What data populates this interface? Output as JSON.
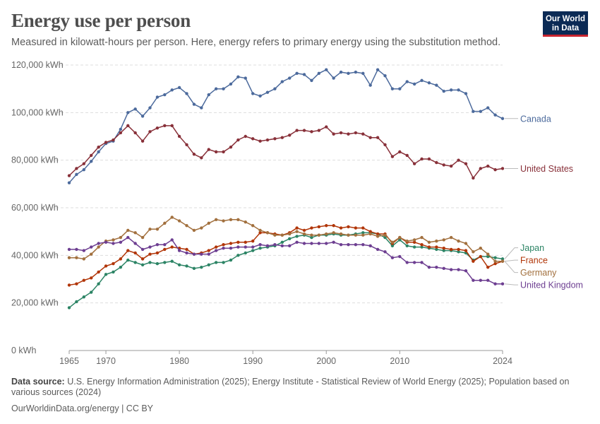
{
  "header": {
    "title": "Energy use per person",
    "subtitle": "Measured in kilowatt-hours per person. Here, energy refers to primary energy using the substitution method."
  },
  "logo": {
    "line1": "Our World",
    "line2": "in Data"
  },
  "footer": {
    "source_label": "Data source:",
    "source_text": "U.S. Energy Information Administration (2025); Energy Institute - Statistical Review of World Energy (2025); Population based on various sources (2024)",
    "credit": "OurWorldinData.org/energy | CC BY"
  },
  "chart_data": {
    "type": "line",
    "title": "Energy use per person",
    "ylabel": "",
    "xlabel": "",
    "ylim": [
      0,
      120000
    ],
    "xlim": [
      1965,
      2024
    ],
    "y_ticks": [
      0,
      20000,
      40000,
      60000,
      80000,
      100000,
      120000
    ],
    "y_tick_labels": [
      "0 kWh",
      "20,000 kWh",
      "40,000 kWh",
      "60,000 kWh",
      "80,000 kWh",
      "100,000 kWh",
      "120,000 kWh"
    ],
    "x_ticks": [
      1965,
      1970,
      1980,
      1990,
      2000,
      2010,
      2024
    ],
    "x_tick_labels": [
      "1965",
      "1970",
      "1980",
      "1990",
      "2000",
      "2010",
      "2024"
    ],
    "grid": "horizontal dashed",
    "legend": "right-end labels",
    "x": [
      1965,
      1966,
      1967,
      1968,
      1969,
      1970,
      1971,
      1972,
      1973,
      1974,
      1975,
      1976,
      1977,
      1978,
      1979,
      1980,
      1981,
      1982,
      1983,
      1984,
      1985,
      1986,
      1987,
      1988,
      1989,
      1990,
      1991,
      1992,
      1993,
      1994,
      1995,
      1996,
      1997,
      1998,
      1999,
      2000,
      2001,
      2002,
      2003,
      2004,
      2005,
      2006,
      2007,
      2008,
      2009,
      2010,
      2011,
      2012,
      2013,
      2014,
      2015,
      2016,
      2017,
      2018,
      2019,
      2020,
      2021,
      2022,
      2023,
      2024
    ],
    "series": [
      {
        "name": "Canada",
        "color": "#4c6a9c",
        "values": [
          70500,
          74000,
          76000,
          79500,
          83500,
          87000,
          88000,
          93000,
          100000,
          101500,
          98500,
          102000,
          106500,
          107500,
          109500,
          110500,
          108000,
          103500,
          102000,
          107500,
          110000,
          110000,
          112000,
          115000,
          114500,
          108000,
          107000,
          108500,
          110000,
          113000,
          114500,
          116500,
          116000,
          113500,
          116500,
          118000,
          114500,
          117000,
          116500,
          117000,
          116500,
          111500,
          118000,
          115500,
          110000,
          110000,
          113000,
          112000,
          113500,
          112500,
          111500,
          109000,
          109500,
          109500,
          108000,
          100500,
          100500,
          102000,
          99000,
          97500
        ]
      },
      {
        "name": "United States",
        "color": "#883039",
        "values": [
          73500,
          76500,
          78500,
          82000,
          85500,
          87500,
          88500,
          91500,
          94500,
          91500,
          88000,
          92000,
          93500,
          94500,
          94500,
          90000,
          86500,
          82500,
          81000,
          84500,
          83500,
          83500,
          85500,
          88500,
          90000,
          89000,
          88000,
          88500,
          89000,
          89500,
          90500,
          92500,
          92500,
          92000,
          92500,
          94000,
          91000,
          91500,
          91000,
          91500,
          91000,
          89500,
          89500,
          86500,
          81500,
          83500,
          82000,
          78500,
          80500,
          80500,
          79000,
          78000,
          77500,
          80000,
          78500,
          72500,
          76500,
          77500,
          76000,
          76500
        ]
      },
      {
        "name": "Japan",
        "color": "#2c8465",
        "values": [
          18000,
          20500,
          22500,
          24500,
          28000,
          32000,
          33000,
          35000,
          38000,
          37000,
          36000,
          37000,
          36500,
          37000,
          37500,
          36000,
          35500,
          34500,
          35000,
          36000,
          37000,
          37000,
          38000,
          40000,
          41000,
          42000,
          43000,
          43500,
          44000,
          45500,
          47000,
          48000,
          48500,
          47500,
          48500,
          48500,
          49000,
          48500,
          48500,
          49000,
          49500,
          49500,
          49000,
          47500,
          44000,
          46500,
          44000,
          43500,
          43500,
          43000,
          42500,
          42000,
          42000,
          41500,
          41000,
          38000,
          39500,
          39500,
          39000,
          38500
        ]
      },
      {
        "name": "France",
        "color": "#b13507",
        "values": [
          27500,
          28000,
          29500,
          30500,
          33000,
          35500,
          36500,
          38500,
          42000,
          41000,
          38500,
          40500,
          41000,
          42500,
          43500,
          43000,
          42500,
          40500,
          41000,
          42000,
          43500,
          44500,
          45000,
          45500,
          45500,
          46000,
          49500,
          49500,
          49000,
          48500,
          49500,
          51500,
          50500,
          51500,
          52000,
          52500,
          52500,
          51500,
          52000,
          51500,
          51500,
          50000,
          49000,
          49000,
          45000,
          47500,
          45500,
          45500,
          44500,
          43500,
          43500,
          43000,
          42500,
          42500,
          42000,
          37500,
          39500,
          35000,
          36500,
          37500
        ]
      },
      {
        "name": "Germany",
        "color": "#a2703e",
        "values": [
          39000,
          39000,
          38500,
          40500,
          43500,
          46000,
          46500,
          47500,
          50500,
          49500,
          47500,
          51000,
          51000,
          53500,
          56000,
          54500,
          52500,
          50500,
          51500,
          53500,
          55000,
          54500,
          55000,
          55000,
          54000,
          52500,
          50500,
          49500,
          48500,
          48500,
          49000,
          50000,
          49000,
          48500,
          48500,
          49000,
          49500,
          49000,
          48500,
          48500,
          48500,
          49000,
          48000,
          48500,
          45500,
          47500,
          46000,
          46500,
          47500,
          45500,
          46000,
          46500,
          47500,
          46000,
          45000,
          41500,
          43000,
          40500,
          37500,
          37500
        ]
      },
      {
        "name": "United Kingdom",
        "color": "#6d3e91",
        "values": [
          42500,
          42500,
          42000,
          43500,
          45000,
          45500,
          45000,
          45500,
          47500,
          45000,
          42500,
          43500,
          44500,
          44500,
          46500,
          42000,
          41000,
          40500,
          40500,
          40500,
          42000,
          43000,
          43000,
          43500,
          43500,
          43500,
          44500,
          44000,
          44500,
          44000,
          44000,
          45500,
          45000,
          45000,
          45000,
          45000,
          45500,
          44500,
          44500,
          44500,
          44500,
          44000,
          42500,
          41500,
          39000,
          39500,
          37000,
          37000,
          37000,
          35000,
          35000,
          34500,
          34000,
          34000,
          33500,
          29500,
          29500,
          29500,
          28000,
          28000
        ]
      }
    ]
  }
}
